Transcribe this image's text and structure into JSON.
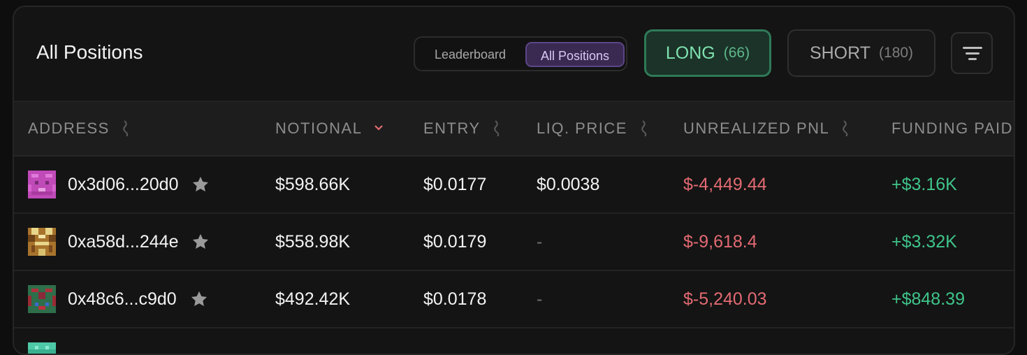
{
  "header": {
    "title": "All Positions",
    "segmented": {
      "options": [
        "Leaderboard",
        "All Positions"
      ],
      "selected": "All Positions"
    },
    "long_button": {
      "label": "LONG",
      "count": "(66)"
    },
    "short_button": {
      "label": "SHORT",
      "count": "(180)"
    },
    "filter_icon": "filter-icon"
  },
  "table": {
    "columns": [
      "ADDRESS",
      "NOTIONAL",
      "ENTRY",
      "LIQ. PRICE",
      "UNREALIZED PNL",
      "FUNDING PAID"
    ],
    "sorted_column": "NOTIONAL",
    "rows": [
      {
        "address": "0x3d06...20d0",
        "notional": "$598.66K",
        "entry": "$0.0177",
        "liq_price": "$0.0038",
        "unrealized_pnl": "$-4,449.44",
        "funding_paid": "+$3.16K"
      },
      {
        "address": "0xa58d...244e",
        "notional": "$558.98K",
        "entry": "$0.0179",
        "liq_price": "-",
        "unrealized_pnl": "$-9,618.4",
        "funding_paid": "+$3.32K"
      },
      {
        "address": "0x48c6...c9d0",
        "notional": "$492.42K",
        "entry": "$0.0178",
        "liq_price": "-",
        "unrealized_pnl": "$-5,240.03",
        "funding_paid": "+$848.39"
      }
    ]
  },
  "colors": {
    "accent_purple": "#3a2a52",
    "long_green": "#7fe3b0",
    "negative_red": "#e26a72",
    "positive_green": "#3fc48a"
  }
}
